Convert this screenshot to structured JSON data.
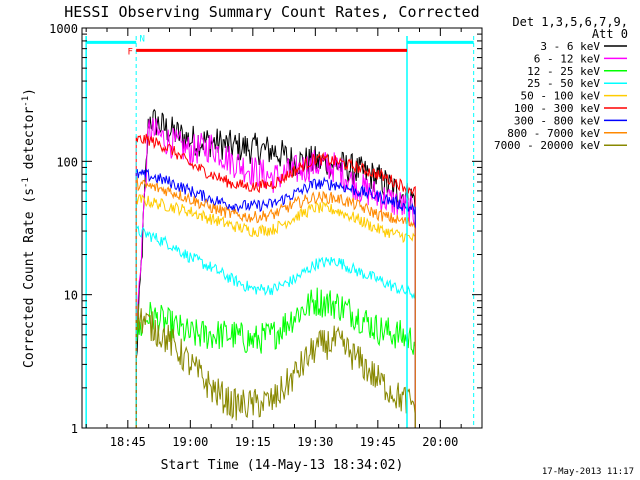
{
  "chart_data": {
    "type": "line",
    "title": "HESSI Observing Summary Count Rates, Corrected",
    "xlabel": "Start Time (14-May-13 18:34:02)",
    "ylabel": "Corrected Count Rate (s⁻¹ detector⁻¹)",
    "ylabel_parts": {
      "main": "Corrected Count Rate (s",
      "sup1": "-1",
      "mid": " detector",
      "sup2": "-1",
      "end": ")"
    },
    "y_scale": "log",
    "ylim": [
      1,
      1000
    ],
    "xlim": [
      "18:34",
      "20:10"
    ],
    "x_ticks": [
      "18:45",
      "19:00",
      "19:15",
      "19:30",
      "19:45",
      "20:00"
    ],
    "y_ticks": [
      "1",
      "10",
      "100",
      "1000"
    ],
    "legend_title": [
      "Det 1,3,5,6,7,9,",
      "Att 0"
    ],
    "legend_position": "right",
    "timestamp": "17-May-2013 11:17",
    "grid": false,
    "data_window": {
      "start": "18:47",
      "end": "19:54"
    },
    "markers": [
      {
        "label": "F",
        "color": "#ff0000",
        "start": "18:47",
        "end": "19:52",
        "value": 680
      },
      {
        "label": "N",
        "color": "#00ffff",
        "start": "18:35",
        "end": "18:47",
        "value": 780
      },
      {
        "label": "",
        "color": "#00ffff",
        "start": "19:52",
        "end": "20:08",
        "value": 780
      }
    ],
    "night_boundaries": {
      "color": "#00ffff",
      "solid": [
        "18:35",
        "19:52"
      ],
      "dashed": [
        "18:47",
        "20:08"
      ]
    },
    "times": [
      "18:47",
      "18:50",
      "18:55",
      "19:00",
      "19:05",
      "19:10",
      "19:15",
      "19:20",
      "19:25",
      "19:30",
      "19:35",
      "19:40",
      "19:45",
      "19:50",
      "19:54"
    ],
    "series": [
      {
        "name": "3 - 6 keV",
        "color": "#000000",
        "values": [
          3,
          210,
          170,
          145,
          140,
          130,
          125,
          120,
          100,
          100,
          95,
          85,
          75,
          58,
          52
        ]
      },
      {
        "name": "6 - 12 keV",
        "color": "#ff00ff",
        "values": [
          5,
          175,
          140,
          120,
          130,
          100,
          85,
          75,
          85,
          95,
          90,
          65,
          55,
          48,
          40
        ]
      },
      {
        "name": "12 - 25 keV",
        "color": "#00ff00",
        "values": [
          5,
          7,
          6,
          5,
          5,
          5,
          4.5,
          5,
          7,
          9,
          8.5,
          7,
          5.5,
          5,
          4.5
        ]
      },
      {
        "name": "25 - 50 keV",
        "color": "#00ffff",
        "values": [
          30,
          28,
          24,
          19,
          16,
          13,
          11,
          11,
          13,
          17,
          18,
          15,
          13,
          11,
          10
        ]
      },
      {
        "name": "50 - 100 keV",
        "color": "#ffcc00",
        "values": [
          52,
          50,
          46,
          42,
          37,
          33,
          30,
          31,
          38,
          45,
          43,
          37,
          31,
          28,
          26
        ]
      },
      {
        "name": "100 - 300 keV",
        "color": "#ff0000",
        "values": [
          145,
          145,
          125,
          95,
          80,
          68,
          64,
          68,
          85,
          105,
          100,
          90,
          80,
          68,
          60
        ]
      },
      {
        "name": "300 - 800 keV",
        "color": "#0000ff",
        "values": [
          80,
          78,
          70,
          60,
          52,
          47,
          46,
          48,
          57,
          68,
          67,
          60,
          55,
          48,
          43
        ]
      },
      {
        "name": "800 - 7000 keV",
        "color": "#ff8800",
        "values": [
          68,
          65,
          60,
          52,
          45,
          40,
          38,
          40,
          48,
          54,
          53,
          47,
          40,
          36,
          34
        ]
      },
      {
        "name": "7000 - 20000 keV",
        "color": "#888800",
        "values": [
          7,
          6,
          4.5,
          3,
          2,
          1.5,
          1.5,
          1.6,
          2.5,
          4,
          4.5,
          3.3,
          2.3,
          1.7,
          1.5
        ]
      }
    ]
  }
}
